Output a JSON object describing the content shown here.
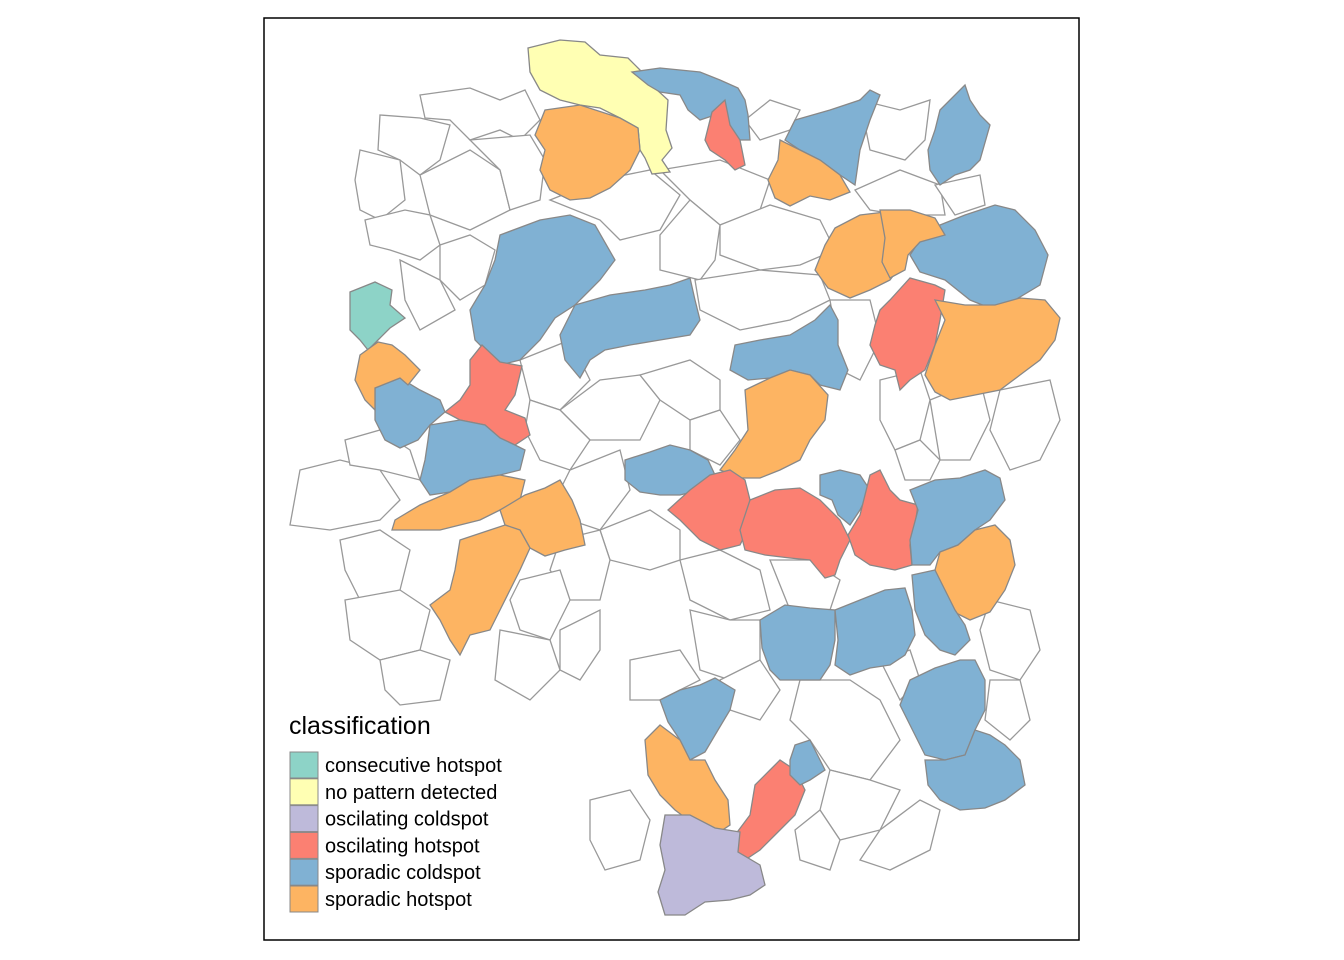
{
  "legend": {
    "title": "classification",
    "items": [
      {
        "key": "consecutive_hotspot",
        "label": "consecutive hotspot",
        "color": "#8DD3C7"
      },
      {
        "key": "no_pattern",
        "label": "no pattern detected",
        "color": "#FFFFB3"
      },
      {
        "key": "oscilating_coldspot",
        "label": "oscilating coldspot",
        "color": "#BEBADA"
      },
      {
        "key": "oscilating_hotspot",
        "label": "oscilating hotspot",
        "color": "#FB8072"
      },
      {
        "key": "sporadic_coldspot",
        "label": "sporadic coldspot",
        "color": "#80B1D3"
      },
      {
        "key": "sporadic_hotspot",
        "label": "sporadic hotspot",
        "color": "#FDB462"
      }
    ]
  },
  "map": {
    "unclassified_fill": "#FFFFFF",
    "border_color": "#999999",
    "region_classes": [
      "no_pattern",
      "sporadic_coldspot",
      "oscilating_hotspot",
      "sporadic_hotspot",
      "sporadic_coldspot",
      "sporadic_hotspot",
      "sporadic_coldspot",
      "sporadic_coldspot",
      "sporadic_hotspot",
      "sporadic_coldspot",
      "consecutive_hotspot",
      "sporadic_coldspot",
      "oscilating_hotspot",
      "sporadic_coldspot",
      "sporadic_hotspot",
      "oscilating_hotspot",
      "sporadic_hotspot",
      "sporadic_coldspot",
      "sporadic_coldspot",
      "sporadic_hotspot",
      "sporadic_coldspot",
      "sporadic_hotspot",
      "oscilating_hotspot",
      "oscilating_hotspot",
      "sporadic_coldspot",
      "oscilating_hotspot",
      "sporadic_coldspot",
      "sporadic_hotspot",
      "sporadic_hotspot",
      "sporadic_hotspot",
      "sporadic_coldspot",
      "sporadic_coldspot",
      "sporadic_coldspot",
      "sporadic_coldspot",
      "sporadic_hotspot",
      "sporadic_coldspot",
      "sporadic_hotspot",
      "oscilating_hotspot",
      "oscilating_coldspot",
      "sporadic_coldspot",
      "sporadic_coldspot"
    ]
  }
}
